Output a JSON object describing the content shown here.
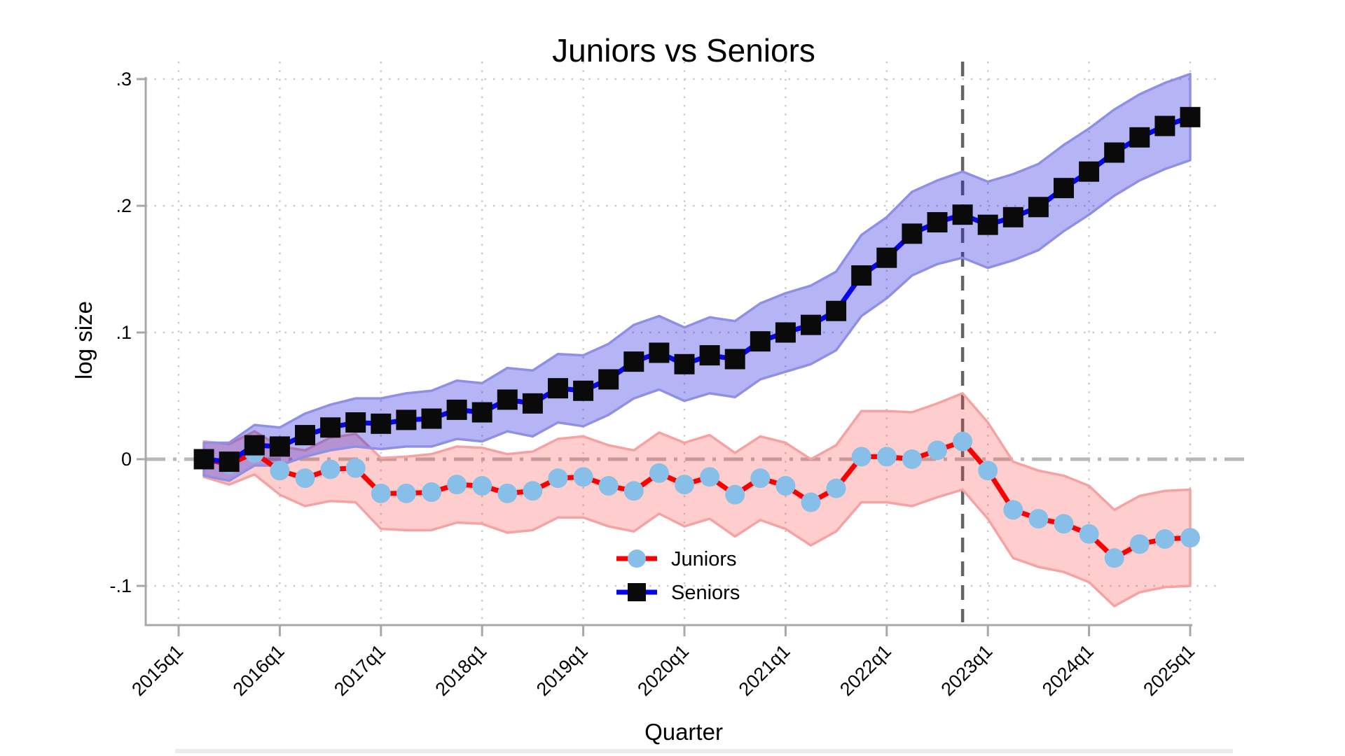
{
  "chart_data": {
    "type": "line",
    "title": "Juniors vs Seniors",
    "xlabel": "Quarter",
    "ylabel": "log size",
    "grid": true,
    "legend_position": "inside-bottom-center",
    "ylim": [
      -0.125,
      0.305
    ],
    "y_tick_labels": [
      ".3",
      ".2",
      ".1",
      "0",
      "-.1"
    ],
    "y_tick_values": [
      0.3,
      0.2,
      0.1,
      0,
      -0.1
    ],
    "x_tick_labels": [
      "2015q1",
      "2016q1",
      "2017q1",
      "2018q1",
      "2019q1",
      "2020q1",
      "2021q1",
      "2022q1",
      "2023q1",
      "2024q1",
      "2025q1"
    ],
    "x": [
      "2015q2",
      "2015q3",
      "2015q4",
      "2016q1",
      "2016q2",
      "2016q3",
      "2016q4",
      "2017q1",
      "2017q2",
      "2017q3",
      "2017q4",
      "2018q1",
      "2018q2",
      "2018q3",
      "2018q4",
      "2019q1",
      "2019q2",
      "2019q3",
      "2019q4",
      "2020q1",
      "2020q2",
      "2020q3",
      "2020q4",
      "2021q1",
      "2021q2",
      "2021q3",
      "2021q4",
      "2022q1",
      "2022q2",
      "2022q3",
      "2022q4",
      "2023q1",
      "2023q2",
      "2023q3",
      "2023q4",
      "2024q1",
      "2024q2",
      "2024q3",
      "2024q4",
      "2025q1"
    ],
    "series": [
      {
        "name": "Juniors",
        "line_color": "#fa0000",
        "marker": "circle",
        "marker_color": "#87bfe8",
        "band_fill": "rgba(250,60,60,0.25)",
        "band_edge": "#f7a2a2",
        "values": [
          0.0,
          -0.004,
          0.005,
          -0.009,
          -0.015,
          -0.008,
          -0.007,
          -0.027,
          -0.027,
          -0.026,
          -0.02,
          -0.021,
          -0.027,
          -0.025,
          -0.015,
          -0.014,
          -0.021,
          -0.025,
          -0.011,
          -0.02,
          -0.014,
          -0.028,
          -0.015,
          -0.021,
          -0.034,
          -0.023,
          0.002,
          0.002,
          0.0,
          0.007,
          0.014,
          -0.009,
          -0.04,
          -0.047,
          -0.051,
          -0.059,
          -0.078,
          -0.067,
          -0.063,
          -0.062
        ],
        "ci_halfwidth": [
          0.014,
          0.016,
          0.017,
          0.019,
          0.022,
          0.025,
          0.027,
          0.028,
          0.029,
          0.03,
          0.03,
          0.03,
          0.031,
          0.031,
          0.031,
          0.032,
          0.032,
          0.032,
          0.032,
          0.033,
          0.033,
          0.033,
          0.033,
          0.034,
          0.034,
          0.034,
          0.036,
          0.036,
          0.037,
          0.037,
          0.038,
          0.038,
          0.038,
          0.038,
          0.038,
          0.038,
          0.038,
          0.038,
          0.038,
          0.038
        ]
      },
      {
        "name": "Seniors",
        "line_color": "#0505ee",
        "marker": "square",
        "marker_color": "#0a0a0a",
        "band_fill": "rgba(10,10,224,0.30)",
        "band_edge": "#8f8fe6",
        "values": [
          0.0,
          -0.002,
          0.011,
          0.01,
          0.019,
          0.025,
          0.029,
          0.028,
          0.031,
          0.032,
          0.039,
          0.037,
          0.047,
          0.044,
          0.056,
          0.054,
          0.063,
          0.077,
          0.084,
          0.075,
          0.082,
          0.079,
          0.093,
          0.1,
          0.106,
          0.117,
          0.145,
          0.159,
          0.178,
          0.187,
          0.193,
          0.185,
          0.191,
          0.199,
          0.214,
          0.227,
          0.242,
          0.254,
          0.263,
          0.27
        ],
        "ci_halfwidth": [
          0.013,
          0.015,
          0.016,
          0.015,
          0.017,
          0.018,
          0.019,
          0.02,
          0.021,
          0.022,
          0.023,
          0.023,
          0.025,
          0.026,
          0.027,
          0.028,
          0.028,
          0.029,
          0.029,
          0.029,
          0.03,
          0.03,
          0.03,
          0.031,
          0.031,
          0.031,
          0.032,
          0.032,
          0.033,
          0.033,
          0.034,
          0.034,
          0.034,
          0.034,
          0.034,
          0.034,
          0.034,
          0.034,
          0.034,
          0.034
        ]
      }
    ],
    "reference_lines": [
      {
        "type": "vertical",
        "x": "2022q4",
        "style": "dashed",
        "color": "#636363"
      },
      {
        "type": "horizontal",
        "y": 0,
        "style": "dash-dot",
        "color": "#b8b8b8"
      }
    ],
    "axis_color": "#a8a8a8",
    "gridline_color": "#c8c8c8"
  },
  "legend": [
    {
      "label": "Juniors"
    },
    {
      "label": "Seniors"
    }
  ]
}
